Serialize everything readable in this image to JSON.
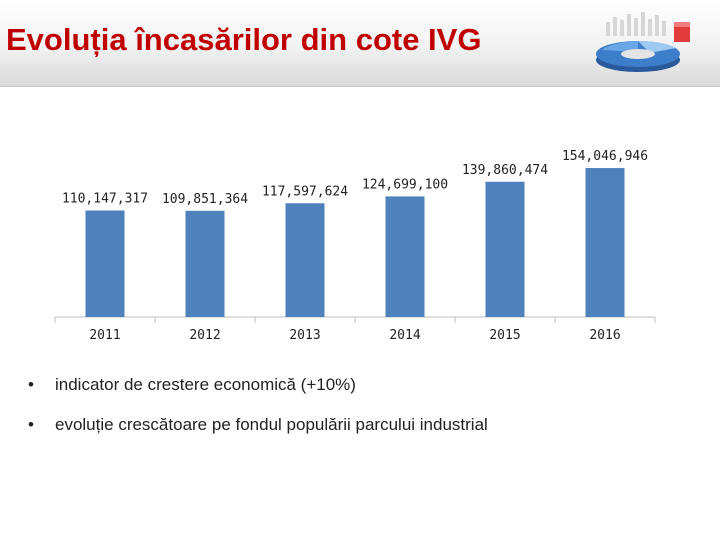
{
  "slide": {
    "title": "Evoluția încasărilor din cote IVG",
    "logo_icon": "3d-ring-chart-logo-icon"
  },
  "bullets": [
    "indicator de crestere economică (+10%)",
    "evoluție crescătoare pe fondul populării parcului industrial"
  ],
  "chart_data": {
    "type": "bar",
    "categories": [
      "2011",
      "2012",
      "2013",
      "2014",
      "2015",
      "2016"
    ],
    "values": [
      110147317,
      109851364,
      117597624,
      124699100,
      139860474,
      154046946
    ],
    "data_labels": [
      "110,147,317",
      "109,851,364",
      "117,597,624",
      "124,699,100",
      "139,860,474",
      "154,046,946"
    ],
    "title": "",
    "xlabel": "",
    "ylabel": "",
    "ylim": [
      0,
      160000000
    ],
    "grid": false,
    "legend": "none",
    "colors": {
      "bar": "#4f81bd",
      "axis": "#bfbfbf"
    }
  }
}
